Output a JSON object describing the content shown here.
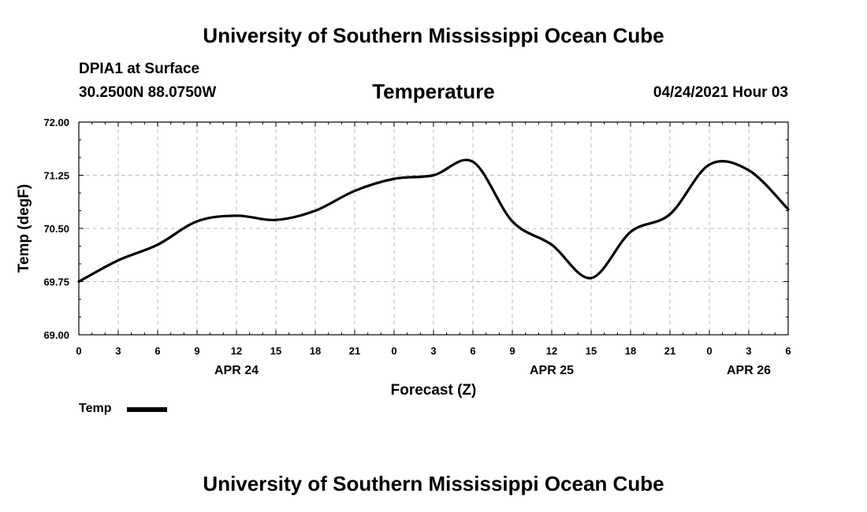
{
  "header": {
    "title": "University of Southern Mississippi Ocean Cube",
    "station": "DPIA1 at Surface",
    "coordinates": "30.2500N  88.0750W",
    "variable": "Temperature",
    "datetime": "04/24/2021 Hour 03",
    "footer_title": "University of Southern Mississippi Ocean Cube"
  },
  "legend": {
    "label": "Temp"
  },
  "chart_data": {
    "type": "line",
    "title": "Temperature",
    "xlabel": "Forecast (Z)",
    "ylabel": "Temp (degF)",
    "ylim": [
      69.0,
      72.0
    ],
    "yticks": [
      "72.00",
      "71.25",
      "70.50",
      "69.75",
      "69.00"
    ],
    "ytick_values": [
      72.0,
      71.25,
      70.5,
      69.75,
      69.0
    ],
    "xlim": [
      0,
      54
    ],
    "xticks": [
      0,
      3,
      6,
      9,
      12,
      15,
      18,
      21,
      24,
      27,
      30,
      33,
      36,
      39,
      42,
      45,
      48,
      51,
      54
    ],
    "xtick_labels": [
      "0",
      "3",
      "6",
      "9",
      "12",
      "15",
      "18",
      "21",
      "0",
      "3",
      "6",
      "9",
      "12",
      "15",
      "18",
      "21",
      "0",
      "3",
      "6"
    ],
    "date_labels": [
      {
        "label": "APR 24",
        "hour": 12
      },
      {
        "label": "APR 25",
        "hour": 36
      },
      {
        "label": "APR 26",
        "hour": 51
      }
    ],
    "grid": true,
    "legend_position": "bottom-left",
    "series": [
      {
        "name": "Temp",
        "x": [
          0,
          3,
          6,
          9,
          12,
          15,
          18,
          21,
          24,
          27,
          30,
          33,
          36,
          39,
          42,
          45,
          48,
          51,
          54
        ],
        "values": [
          69.75,
          70.05,
          70.27,
          70.6,
          70.68,
          70.62,
          70.75,
          71.03,
          71.2,
          71.25,
          71.44,
          70.6,
          70.27,
          69.8,
          70.45,
          70.7,
          71.4,
          71.32,
          70.77
        ]
      }
    ]
  }
}
